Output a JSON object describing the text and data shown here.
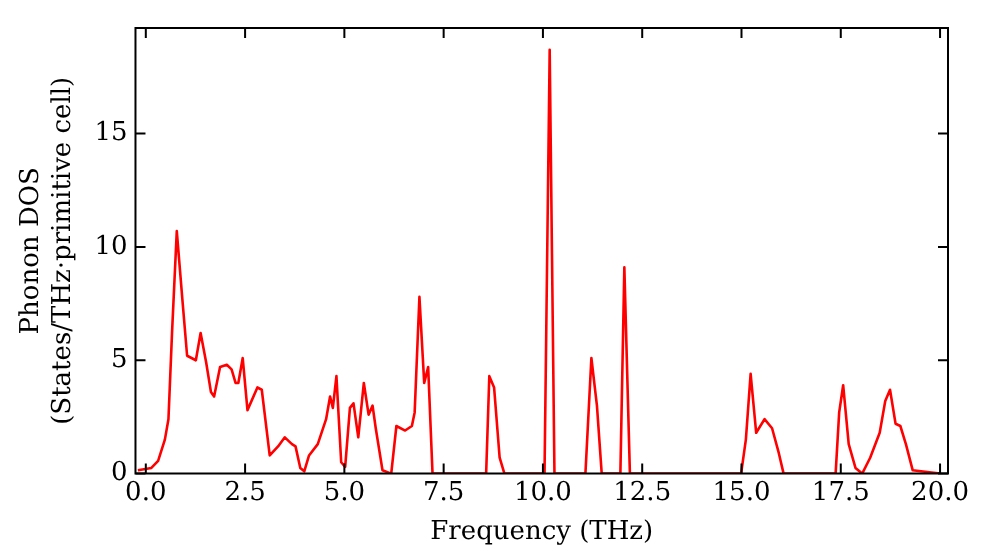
{
  "chart_data": {
    "type": "line",
    "xlabel": "Frequency (THz)",
    "ylabel": "Phonon DOS\n(States/THz·primitive cell)",
    "x": [
      -0.2,
      0.14,
      0.31,
      0.48,
      0.57,
      0.66,
      0.78,
      0.92,
      1.04,
      1.26,
      1.38,
      1.52,
      1.64,
      1.72,
      1.87,
      2.04,
      2.16,
      2.26,
      2.33,
      2.44,
      2.56,
      2.81,
      2.92,
      3.12,
      3.33,
      3.5,
      3.68,
      3.77,
      3.89,
      3.99,
      4.11,
      4.33,
      4.54,
      4.64,
      4.71,
      4.8,
      4.92,
      5.02,
      5.14,
      5.23,
      5.35,
      5.49,
      5.61,
      5.71,
      5.79,
      5.96,
      6.18,
      6.31,
      6.53,
      6.7,
      6.77,
      6.89,
      7.01,
      7.11,
      7.22,
      8.57,
      8.65,
      8.77,
      8.91,
      9.03,
      10.04,
      10.17,
      10.29,
      11.07,
      11.22,
      11.36,
      11.48,
      11.95,
      12.05,
      12.19,
      14.99,
      15.11,
      15.23,
      15.37,
      15.58,
      15.77,
      15.94,
      16.06,
      17.37,
      17.46,
      17.56,
      17.7,
      17.87,
      18.04,
      18.24,
      18.48,
      18.62,
      18.74,
      18.88,
      19.0,
      19.14,
      19.31,
      20.0
    ],
    "series": [
      {
        "color": "#ff0000",
        "values": [
          0.15,
          0.25,
          0.56,
          1.5,
          2.4,
          6.2,
          10.7,
          7.7,
          5.2,
          5.0,
          6.2,
          4.9,
          3.6,
          3.4,
          4.7,
          4.8,
          4.6,
          4.0,
          4.0,
          5.1,
          2.8,
          3.8,
          3.7,
          0.8,
          1.2,
          1.6,
          1.3,
          1.2,
          0.25,
          0.1,
          0.8,
          1.3,
          2.4,
          3.4,
          2.9,
          4.3,
          0.5,
          0.3,
          2.9,
          3.1,
          1.6,
          4.0,
          2.6,
          3.0,
          2.0,
          0.15,
          0,
          2.1,
          1.9,
          2.1,
          2.7,
          7.8,
          4.0,
          4.7,
          0,
          0,
          4.3,
          3.8,
          0.7,
          0,
          0,
          18.7,
          0,
          0,
          5.1,
          3.0,
          0,
          0,
          9.1,
          0,
          0,
          1.5,
          4.4,
          1.8,
          2.4,
          2.0,
          0.9,
          0,
          0,
          2.7,
          3.9,
          1.3,
          0.25,
          0,
          0.7,
          1.8,
          3.2,
          3.7,
          2.2,
          2.1,
          1.3,
          0.15,
          0
        ]
      }
    ],
    "xlim": [
      -0.26,
      20.2
    ],
    "ylim": [
      0,
      19.66
    ],
    "xticks": [
      {
        "value": 0,
        "label": "0.0"
      },
      {
        "value": 2.5,
        "label": "2.5"
      },
      {
        "value": 5,
        "label": "5.0"
      },
      {
        "value": 7.5,
        "label": "7.5"
      },
      {
        "value": 10,
        "label": "10.0"
      },
      {
        "value": 12.5,
        "label": "12.5"
      },
      {
        "value": 15,
        "label": "15.0"
      },
      {
        "value": 17.5,
        "label": "17.5"
      },
      {
        "value": 20,
        "label": "20.0"
      }
    ],
    "yticks": [
      0,
      5,
      10,
      15
    ],
    "grid": false,
    "legend": false,
    "marker": "none",
    "line_style": "solid"
  }
}
